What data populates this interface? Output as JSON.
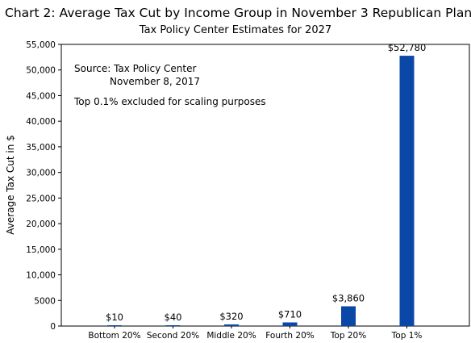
{
  "chart_data": {
    "type": "bar",
    "title": "Chart 2: Average Tax Cut by Income Group in November 3 Republican Plan",
    "subtitle": "Tax Policy Center Estimates for 2027",
    "xlabel": "",
    "ylabel": "Average Tax Cut in $",
    "categories": [
      "Bottom 20%",
      "Second 20%",
      "Middle 20%",
      "Fourth 20%",
      "Top 20%",
      "Top 1%"
    ],
    "values": [
      10,
      40,
      320,
      710,
      3860,
      52780
    ],
    "value_labels": [
      "$10",
      "$40",
      "$320",
      "$710",
      "$3,860",
      "$52,780"
    ],
    "ylim": [
      0,
      55000
    ],
    "yticks": [
      0,
      5000,
      10000,
      15000,
      20000,
      25000,
      30000,
      35000,
      40000,
      45000,
      50000,
      55000
    ],
    "ytick_labels": [
      "0",
      "5000",
      "10,000",
      "15,000",
      "20,000",
      "25,000",
      "30,000",
      "35,000",
      "40,000",
      "45,000",
      "50,000",
      "55,000"
    ],
    "grid": false,
    "annotations": [
      "Source:  Tax Policy Center",
      "November 8, 2017",
      "Top 0.1% excluded for scaling purposes"
    ],
    "bar_color": "#0b47a6"
  }
}
